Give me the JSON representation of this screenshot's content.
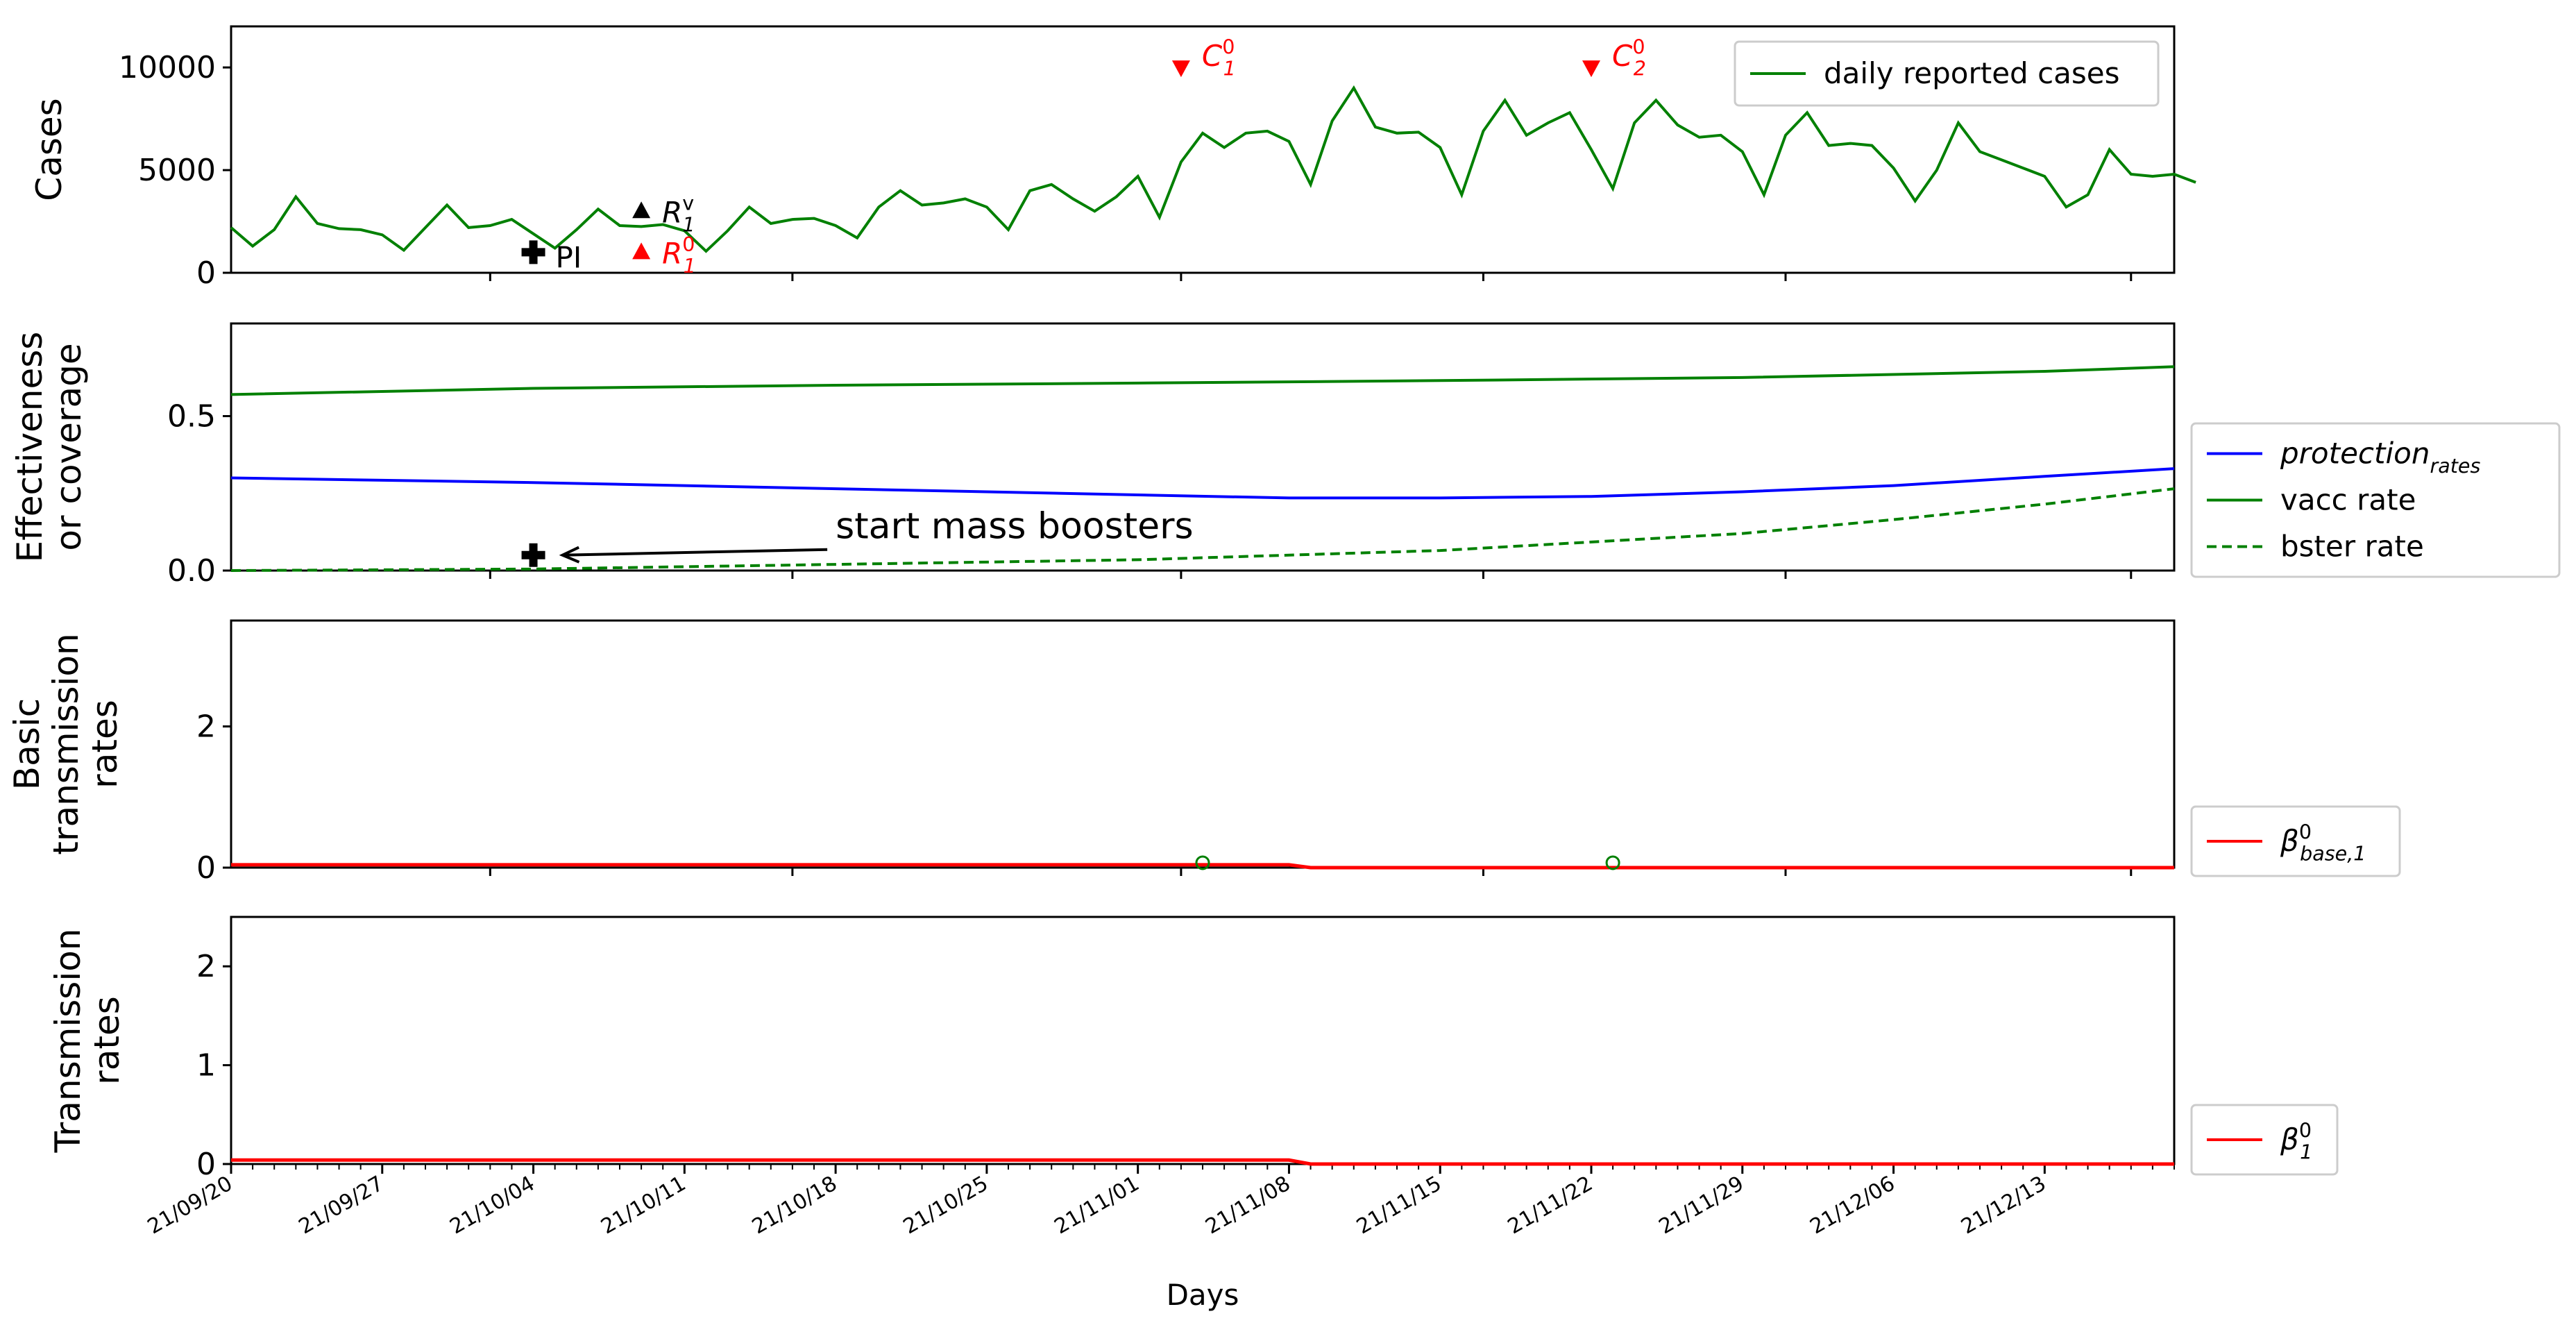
{
  "chart_data": {
    "type": "line",
    "x_axis": {
      "label": "Days",
      "start": "2021-09-20",
      "end": "2021-12-19",
      "tick_labels": [
        "21/09/20",
        "21/09/27",
        "21/10/04",
        "21/10/11",
        "21/10/18",
        "21/10/25",
        "21/11/01",
        "21/11/08",
        "21/11/15",
        "21/11/22",
        "21/11/29",
        "21/12/06",
        "21/12/13"
      ]
    },
    "panels": [
      {
        "ylabel": [
          "Cases"
        ],
        "ylim": [
          0,
          12000
        ],
        "yticks": [
          0,
          5000,
          10000
        ],
        "legend": {
          "placement": "top-right"
        },
        "series": [
          {
            "name": "daily reported cases",
            "color": "#008000",
            "style": "solid",
            "x_start": "2021-09-20",
            "values": [
              2200,
              1300,
              2100,
              3700,
              2400,
              2150,
              2100,
              1850,
              1100,
              2200,
              3300,
              2200,
              2300,
              2600,
              1900,
              1200,
              2100,
              3100,
              2300,
              2250,
              2350,
              2050,
              1050,
              2050,
              3200,
              2400,
              2600,
              2650,
              2300,
              1700,
              3200,
              4000,
              3300,
              3400,
              3600,
              3200,
              2100,
              4000,
              4300,
              3600,
              3000,
              3700,
              4700,
              2700,
              5400,
              6800,
              6100,
              6800,
              6900,
              6400,
              4300,
              7400,
              9000,
              7100,
              6800,
              6850,
              6100,
              3800,
              6900,
              8400,
              6700,
              7300,
              7800,
              6000,
              4100,
              7300,
              8400,
              7200,
              6600,
              6700,
              5900,
              3800,
              6700,
              7800,
              6200,
              6300,
              6200,
              5100,
              3500,
              5000,
              7300,
              5900,
              5500,
              5100,
              4700,
              3200,
              3800,
              6000,
              4800,
              4700,
              4800,
              4400
            ]
          }
        ],
        "annotations": [
          {
            "text": "PI",
            "x": "2021-10-04",
            "y": 1000,
            "marker": "plus",
            "color": "#000000"
          },
          {
            "text": "R_1^v",
            "x": "2021-10-09",
            "y": 3000,
            "marker": "triangle-up",
            "color": "#000000"
          },
          {
            "text": "R_1^0",
            "x": "2021-10-09",
            "y": 1000,
            "marker": "triangle-up",
            "color": "#ff0000"
          },
          {
            "text": "C_1^0",
            "x": "2021-11-03",
            "y": 10000,
            "marker": "triangle-down",
            "color": "#ff0000"
          },
          {
            "text": "C_2^0",
            "x": "2021-11-22",
            "y": 10000,
            "marker": "triangle-down",
            "color": "#ff0000"
          }
        ]
      },
      {
        "ylabel": [
          "Effectiveness",
          "or coverage"
        ],
        "ylim": [
          0,
          0.8
        ],
        "yticks": [
          0.0,
          0.5
        ],
        "legend": {
          "placement": "outside-right"
        },
        "series": [
          {
            "name": "protection_rates",
            "color": "#0000ff",
            "style": "solid",
            "x": [
              "2021-09-20",
              "2021-10-04",
              "2021-10-18",
              "2021-11-01",
              "2021-11-08",
              "2021-11-15",
              "2021-11-22",
              "2021-11-29",
              "2021-12-06",
              "2021-12-13",
              "2021-12-19"
            ],
            "values": [
              0.3,
              0.285,
              0.265,
              0.245,
              0.235,
              0.235,
              0.24,
              0.255,
              0.275,
              0.305,
              0.33
            ]
          },
          {
            "name": "vacc rate",
            "color": "#008000",
            "style": "solid",
            "x": [
              "2021-09-20",
              "2021-10-04",
              "2021-10-18",
              "2021-11-01",
              "2021-11-15",
              "2021-11-29",
              "2021-12-13",
              "2021-12-19"
            ],
            "values": [
              0.57,
              0.59,
              0.6,
              0.607,
              0.615,
              0.625,
              0.645,
              0.66
            ]
          },
          {
            "name": "bster rate",
            "color": "#008000",
            "style": "dashed",
            "x": [
              "2021-09-20",
              "2021-10-04",
              "2021-10-18",
              "2021-11-01",
              "2021-11-15",
              "2021-11-29",
              "2021-12-06",
              "2021-12-13",
              "2021-12-19"
            ],
            "values": [
              0.0,
              0.005,
              0.02,
              0.035,
              0.065,
              0.12,
              0.165,
              0.215,
              0.265
            ]
          }
        ],
        "annotations": [
          {
            "text": "start mass boosters",
            "x": "2021-10-04",
            "y": 0.05,
            "text_x": "2021-10-18",
            "text_y": 0.14,
            "marker": "plus",
            "arrow": true,
            "color": "#000000"
          }
        ]
      },
      {
        "ylabel": [
          "Basic",
          "transmission",
          "rates"
        ],
        "ylim": [
          0,
          3.5
        ],
        "yticks": [
          0,
          2
        ],
        "legend": {
          "placement": "outside-right"
        },
        "series": [
          {
            "name": "β^0_{base,1}",
            "color": "#ff0000",
            "style": "solid",
            "x": [
              "2021-09-20",
              "2021-11-08",
              "2021-11-09",
              "2021-12-19"
            ],
            "values": [
              0.04,
              0.04,
              0.0,
              0.0
            ]
          }
        ],
        "markers": [
          {
            "x": "2021-11-04",
            "y": 0.03,
            "shape": "circle-open",
            "color": "#008000"
          },
          {
            "x": "2021-11-23",
            "y": 0.03,
            "shape": "circle-open",
            "color": "#008000"
          }
        ]
      },
      {
        "ylabel": [
          "Transmission",
          "rates"
        ],
        "ylim": [
          0,
          2.5
        ],
        "yticks": [
          0,
          1,
          2
        ],
        "legend": {
          "placement": "outside-right"
        },
        "series": [
          {
            "name": "β^0_1",
            "color": "#ff0000",
            "style": "solid",
            "x": [
              "2021-09-20",
              "2021-11-08",
              "2021-11-09",
              "2021-12-19"
            ],
            "values": [
              0.04,
              0.04,
              0.0,
              0.0
            ]
          }
        ]
      }
    ]
  }
}
